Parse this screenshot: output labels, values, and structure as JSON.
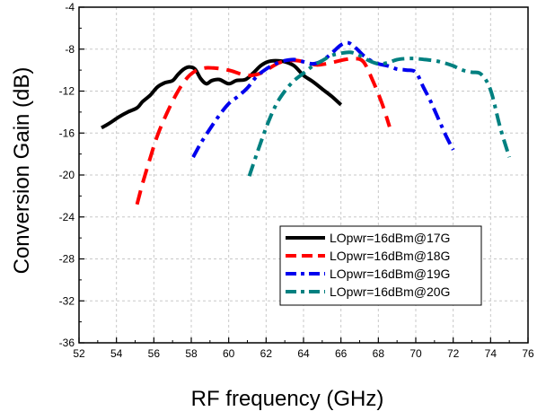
{
  "chart_data": {
    "type": "line",
    "title": "",
    "xlabel": "RF frequency (GHz)",
    "ylabel": "Conversion Gain (dB)",
    "xlim": [
      52,
      76
    ],
    "ylim": [
      -36,
      -4
    ],
    "xticks": [
      52,
      54,
      56,
      58,
      60,
      62,
      64,
      66,
      68,
      70,
      72,
      74,
      76
    ],
    "yticks": [
      -4,
      -8,
      -12,
      -16,
      -20,
      -24,
      -28,
      -32,
      -36
    ],
    "grid": true,
    "legend_position": "bottom-right",
    "series": [
      {
        "name": "LOpwr=16dBm@17G",
        "color": "#000000",
        "dash": "solid",
        "x": [
          53.2,
          53.6,
          54.1,
          54.6,
          55.1,
          55.4,
          55.8,
          56.2,
          56.6,
          57.0,
          57.3,
          57.6,
          57.9,
          58.2,
          58.5,
          58.8,
          59.1,
          59.5,
          60.0,
          60.4,
          60.9,
          61.3,
          61.7,
          62.1,
          62.5,
          63.0,
          63.5,
          64.0,
          64.5,
          65.0,
          65.5,
          66.0
        ],
        "y": [
          -15.5,
          -15.1,
          -14.5,
          -14.0,
          -13.6,
          -13.0,
          -12.4,
          -11.6,
          -11.2,
          -11.0,
          -10.4,
          -9.9,
          -9.7,
          -9.9,
          -10.8,
          -11.3,
          -11.0,
          -10.9,
          -11.3,
          -11.0,
          -10.9,
          -10.3,
          -9.6,
          -9.2,
          -9.1,
          -9.2,
          -9.6,
          -10.5,
          -11.1,
          -11.8,
          -12.5,
          -13.3
        ]
      },
      {
        "name": "LOpwr=16dBm@18G",
        "color": "#ff0000",
        "dash": "long-dash",
        "x": [
          55.1,
          55.4,
          55.8,
          56.2,
          56.7,
          57.2,
          57.7,
          58.2,
          58.7,
          59.2,
          59.7,
          60.2,
          60.7,
          61.2,
          61.7,
          62.2,
          62.7,
          63.2,
          63.7,
          64.2,
          64.7,
          65.2,
          65.7,
          66.2,
          66.7,
          67.2,
          67.7,
          68.2,
          68.6
        ],
        "y": [
          -22.8,
          -20.8,
          -18.4,
          -16.2,
          -14.1,
          -12.3,
          -10.9,
          -10.1,
          -9.8,
          -9.8,
          -9.9,
          -10.1,
          -10.4,
          -10.5,
          -10.3,
          -9.8,
          -9.3,
          -9.1,
          -9.1,
          -9.3,
          -9.5,
          -9.4,
          -9.2,
          -9.0,
          -8.9,
          -9.2,
          -11.0,
          -13.2,
          -15.4
        ]
      },
      {
        "name": "LOpwr=16dBm@19G",
        "color": "#0000ee",
        "dash": "dash-dot",
        "x": [
          58.1,
          58.5,
          59.0,
          59.5,
          60.0,
          60.5,
          61.0,
          61.5,
          62.0,
          62.5,
          63.0,
          63.5,
          64.0,
          64.5,
          65.0,
          65.5,
          66.0,
          66.4,
          66.8,
          67.2,
          67.6,
          68.0,
          68.5,
          69.0,
          69.5,
          70.0,
          70.4,
          70.8,
          71.2,
          71.6,
          72.0
        ],
        "y": [
          -18.3,
          -17.0,
          -15.6,
          -14.3,
          -13.2,
          -12.5,
          -11.7,
          -10.6,
          -9.9,
          -9.4,
          -9.1,
          -9.0,
          -9.2,
          -9.4,
          -9.1,
          -8.4,
          -7.6,
          -7.4,
          -7.9,
          -8.6,
          -9.1,
          -9.4,
          -9.6,
          -9.9,
          -10.0,
          -10.2,
          -11.6,
          -13.0,
          -14.6,
          -16.2,
          -17.6
        ]
      },
      {
        "name": "LOpwr=16dBm@20G",
        "color": "#008080",
        "dash": "dash-dot",
        "x": [
          61.1,
          61.5,
          62.0,
          62.5,
          63.0,
          63.5,
          64.0,
          64.5,
          65.0,
          65.5,
          66.0,
          66.5,
          67.0,
          67.5,
          68.0,
          68.5,
          69.0,
          69.5,
          70.0,
          70.5,
          71.0,
          71.5,
          72.0,
          72.5,
          73.0,
          73.5,
          74.0,
          74.5,
          75.0
        ],
        "y": [
          -20.1,
          -18.0,
          -15.5,
          -13.4,
          -12.0,
          -11.0,
          -10.3,
          -9.6,
          -9.1,
          -8.6,
          -8.4,
          -8.3,
          -8.6,
          -9.1,
          -9.4,
          -9.3,
          -9.0,
          -8.9,
          -8.9,
          -9.0,
          -9.1,
          -9.3,
          -9.6,
          -10.0,
          -10.2,
          -10.4,
          -11.9,
          -15.4,
          -18.3
        ]
      }
    ]
  }
}
